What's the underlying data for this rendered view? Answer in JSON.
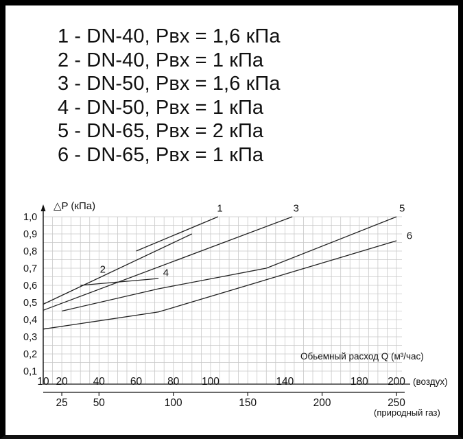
{
  "legend_items": [
    "1 - DN-40, Рвх = 1,6 кПа",
    "2 - DN-40, Рвх = 1 кПа",
    "3 - DN-50, Рвх = 1,6 кПа",
    "4 - DN-50, Рвх = 1 кПа",
    "5 - DN-65, Рвх = 2 кПа",
    "6 - DN-65, Рвх = 1 кПа"
  ],
  "chart_data": {
    "type": "line",
    "ylabel": "△P (кПа)",
    "xlabel": "Обьемный расход Q (м³/час)",
    "x_unit_air": "(воздух)",
    "x_unit_gas": "(природный газ)",
    "xlim_air": [
      10,
      200
    ],
    "ylim": [
      0.1,
      1.0
    ],
    "y_ticks": [
      "1,0",
      "0,9",
      "0,8",
      "0,7",
      "0,6",
      "0,5",
      "0,4",
      "0,3",
      "0,2",
      "0,1"
    ],
    "y_tick_values": [
      1.0,
      0.9,
      0.8,
      0.7,
      0.6,
      0.5,
      0.4,
      0.3,
      0.2,
      0.1
    ],
    "x_ticks_air": [
      "10",
      "20",
      "40",
      "60",
      "80",
      "100",
      "140",
      "180",
      "200"
    ],
    "x_tick_values_air": [
      10,
      20,
      40,
      60,
      80,
      100,
      140,
      180,
      200
    ],
    "x_ticks_gas": [
      "25",
      "50",
      "100",
      "150",
      "200",
      "250"
    ],
    "x_tick_values_gas_in_air_units": [
      20,
      40,
      80,
      120,
      160,
      200
    ],
    "grid": true,
    "series": [
      {
        "name": "1",
        "segments": [
          [
            [
              60,
              0.8
            ],
            [
              104,
              1.0
            ]
          ]
        ]
      },
      {
        "name": "2",
        "segments": [
          [
            [
              10,
              0.49
            ],
            [
              90,
              0.9
            ]
          ]
        ]
      },
      {
        "name": "3",
        "segments": [
          [
            [
              10,
              0.455
            ],
            [
              144,
              1.0
            ]
          ]
        ]
      },
      {
        "name": "4",
        "segments": [
          [
            [
              30,
              0.6
            ],
            [
              72,
              0.64
            ]
          ],
          [
            [
              20,
              0.45
            ],
            [
              72,
              0.58
            ],
            [
              130,
              0.7
            ]
          ]
        ]
      },
      {
        "name": "5",
        "segments": [
          [
            [
              130,
              0.7
            ],
            [
              200,
              1.0
            ]
          ]
        ]
      },
      {
        "name": "6",
        "segments": [
          [
            [
              10,
              0.345
            ],
            [
              72,
              0.445
            ],
            [
              200,
              0.86
            ]
          ]
        ]
      }
    ],
    "series_labels": [
      {
        "text": "1",
        "x": 105,
        "y": 1.03
      },
      {
        "text": "2",
        "x": 42,
        "y": 0.675
      },
      {
        "text": "3",
        "x": 146,
        "y": 1.03
      },
      {
        "text": "4",
        "x": 76,
        "y": 0.655
      },
      {
        "text": "5",
        "x": 203,
        "y": 1.03
      },
      {
        "text": "6",
        "x": 207,
        "y": 0.87
      }
    ]
  }
}
